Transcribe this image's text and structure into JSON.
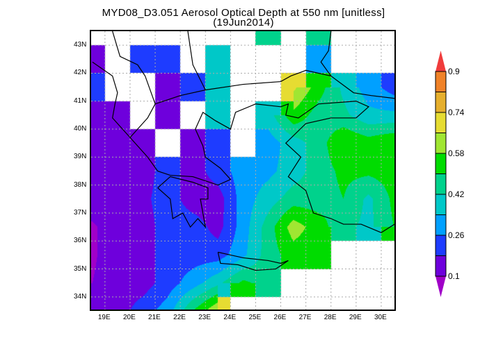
{
  "title": {
    "line1": "MYD08_D3.051 Aerosol Optical Depth at 550 nm [unitless]",
    "line2": "(19Jun2014)"
  },
  "map": {
    "lon_range": [
      18.45,
      30.53
    ],
    "lat_range": [
      33.55,
      43.5
    ],
    "grid_resolution_deg": 1,
    "grid_lines": "dotted",
    "lon_labels": [
      "19E",
      "20E",
      "21E",
      "22E",
      "23E",
      "24E",
      "25E",
      "26E",
      "27E",
      "28E",
      "29E",
      "30E"
    ],
    "lat_labels": [
      "43N",
      "42N",
      "41N",
      "40N",
      "39N",
      "38N",
      "37N",
      "36N",
      "35N",
      "34N"
    ],
    "cell_lons": [
      18,
      19,
      20,
      21,
      22,
      23,
      24,
      25,
      26,
      27,
      28,
      29,
      30
    ],
    "cell_lats": [
      43,
      42,
      41,
      40,
      39,
      38,
      37,
      36,
      35,
      34,
      33
    ],
    "aod_grid": [
      [
        null,
        null,
        null,
        null,
        null,
        null,
        null,
        0.46,
        null,
        0.46,
        null,
        null,
        null
      ],
      [
        0.14,
        null,
        0.22,
        0.22,
        null,
        0.38,
        null,
        null,
        null,
        0.3,
        null,
        null,
        null
      ],
      [
        0.22,
        null,
        null,
        0.14,
        0.22,
        0.38,
        null,
        null,
        0.68,
        0.54,
        0.4,
        0.3,
        0.22
      ],
      [
        0.14,
        0.14,
        null,
        0.14,
        null,
        0.38,
        null,
        0.38,
        0.56,
        0.46,
        0.44,
        0.36,
        0.36
      ],
      [
        0.12,
        0.14,
        0.14,
        null,
        0.14,
        0.22,
        null,
        0.3,
        0.38,
        0.46,
        0.58,
        0.54,
        0.58
      ],
      [
        0.14,
        0.14,
        0.14,
        0.22,
        0.14,
        0.22,
        0.3,
        0.32,
        0.38,
        0.46,
        0.52,
        0.52,
        0.54
      ],
      [
        0.14,
        0.14,
        0.16,
        0.22,
        0.14,
        0.14,
        0.3,
        0.38,
        0.46,
        0.46,
        0.5,
        0.4,
        0.52
      ],
      [
        0.09,
        0.14,
        0.14,
        0.22,
        0.22,
        0.15,
        0.3,
        0.46,
        0.62,
        0.54,
        0.44,
        0.4,
        0.5
      ],
      [
        0.09,
        0.14,
        0.14,
        0.22,
        0.22,
        0.22,
        0.32,
        0.46,
        0.54,
        0.52,
        null,
        null,
        null
      ],
      [
        0.1,
        0.14,
        0.14,
        0.22,
        0.3,
        0.4,
        0.52,
        0.46,
        null,
        null,
        null,
        null,
        null
      ],
      [
        0.14,
        0.14,
        0.22,
        0.3,
        0.5,
        0.66,
        null,
        null,
        null,
        null,
        null,
        null,
        null
      ]
    ]
  },
  "colorbar": {
    "levels": [
      0.1,
      0.18,
      0.26,
      0.34,
      0.42,
      0.5,
      0.58,
      0.66,
      0.74,
      0.82,
      0.9
    ],
    "labels": [
      "0.9",
      "0.74",
      "0.58",
      "0.42",
      "0.26",
      "0.1"
    ],
    "colors": [
      "#a000c8",
      "#6e00dc",
      "#1e3cff",
      "#00a0ff",
      "#00c8c8",
      "#00d28c",
      "#00dc00",
      "#a0e632",
      "#e6dc32",
      "#e6af2d",
      "#f08228",
      "#f03c3c"
    ]
  }
}
